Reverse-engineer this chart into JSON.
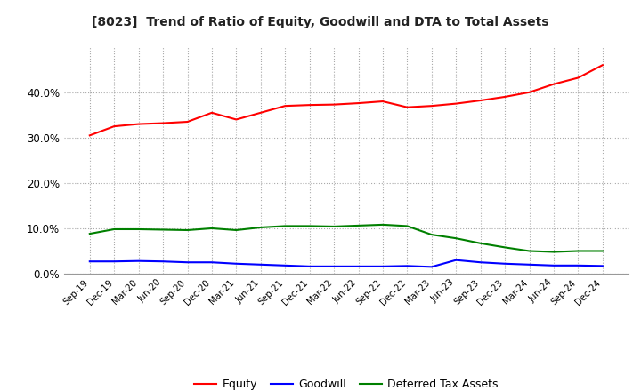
{
  "title": "[8023]  Trend of Ratio of Equity, Goodwill and DTA to Total Assets",
  "x_labels": [
    "Sep-19",
    "Dec-19",
    "Mar-20",
    "Jun-20",
    "Sep-20",
    "Dec-20",
    "Mar-21",
    "Jun-21",
    "Sep-21",
    "Dec-21",
    "Mar-22",
    "Jun-22",
    "Sep-22",
    "Dec-22",
    "Mar-23",
    "Jun-23",
    "Sep-23",
    "Dec-23",
    "Mar-24",
    "Jun-24",
    "Sep-24",
    "Dec-24"
  ],
  "equity": [
    0.305,
    0.325,
    0.33,
    0.332,
    0.335,
    0.355,
    0.34,
    0.355,
    0.37,
    0.372,
    0.373,
    0.376,
    0.38,
    0.367,
    0.37,
    0.375,
    0.382,
    0.39,
    0.4,
    0.418,
    0.432,
    0.46
  ],
  "goodwill": [
    0.027,
    0.027,
    0.028,
    0.027,
    0.025,
    0.025,
    0.022,
    0.02,
    0.018,
    0.016,
    0.016,
    0.016,
    0.016,
    0.017,
    0.015,
    0.03,
    0.025,
    0.022,
    0.02,
    0.018,
    0.018,
    0.017
  ],
  "dta": [
    0.088,
    0.098,
    0.098,
    0.097,
    0.096,
    0.1,
    0.096,
    0.102,
    0.105,
    0.105,
    0.104,
    0.106,
    0.108,
    0.105,
    0.086,
    0.078,
    0.067,
    0.058,
    0.05,
    0.048,
    0.05,
    0.05
  ],
  "equity_color": "#FF0000",
  "goodwill_color": "#0000FF",
  "dta_color": "#008000",
  "bg_color": "#FFFFFF",
  "plot_bg_color": "#FFFFFF",
  "grid_color": "#AAAAAA",
  "ylim": [
    0.0,
    0.5
  ],
  "yticks": [
    0.0,
    0.1,
    0.2,
    0.3,
    0.4
  ],
  "legend_labels": [
    "Equity",
    "Goodwill",
    "Deferred Tax Assets"
  ]
}
